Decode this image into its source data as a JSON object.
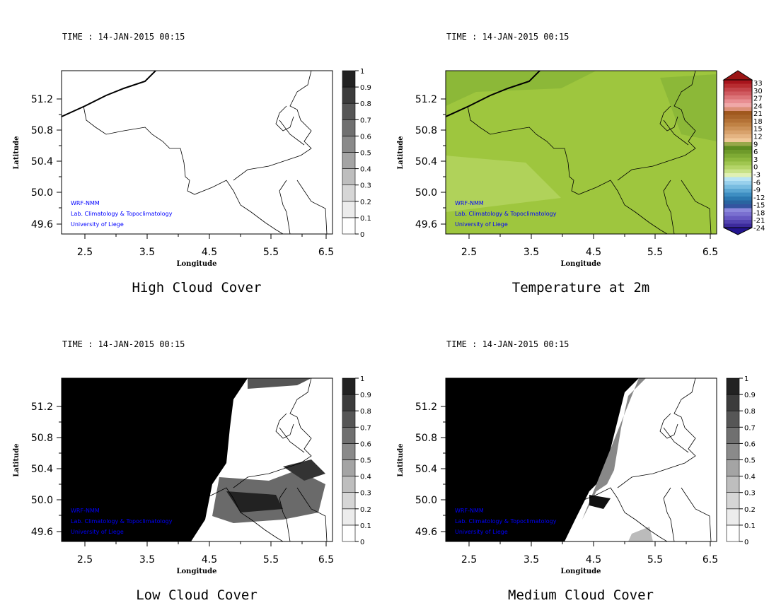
{
  "credits": [
    "WRF-NMM",
    "Lab. Climatology & Topoclimatology",
    "University of Liege"
  ],
  "axes": {
    "xlabel": "Longitude",
    "ylabel": "Latitude",
    "xticks": [
      "2.5",
      "3.5",
      "4.5",
      "5.5",
      "6.5"
    ],
    "yticks": [
      "51.2",
      "50.8",
      "50.4",
      "50.0",
      "49.6"
    ]
  },
  "gray_colorbar": {
    "labels": [
      "0",
      "0.1",
      "0.2",
      "0.3",
      "0.4",
      "0.5",
      "0.6",
      "0.7",
      "0.8",
      "0.9",
      "1"
    ],
    "colors": [
      "#ffffff",
      "#ececec",
      "#d6d6d6",
      "#bebebe",
      "#a4a4a4",
      "#8a8a8a",
      "#707070",
      "#565656",
      "#3c3c3c",
      "#222222"
    ]
  },
  "temp_colorbar": {
    "labels": [
      "33",
      "30",
      "27",
      "24",
      "21",
      "18",
      "15",
      "12",
      "9",
      "6",
      "3",
      "0",
      "-3",
      "-6",
      "-9",
      "-12",
      "-15",
      "-18",
      "-21",
      "-24"
    ],
    "top_color": "#9b1515",
    "bottom_color": "#23148f",
    "colors": [
      "#a8141c",
      "#b82c30",
      "#c4444a",
      "#d05a60",
      "#dc7478",
      "#e88e92",
      "#f0a8a8",
      "#dc9078",
      "#a0581e",
      "#a8642a",
      "#b47236",
      "#c08244",
      "#cc9258",
      "#d8a26c",
      "#e4b482",
      "#f0c898",
      "#98a84a",
      "#5e8c22",
      "#6e9a2a",
      "#7eaa34",
      "#8eb83e",
      "#a0c650",
      "#b4d468",
      "#c8e288",
      "#e0f0b4",
      "#b8e4f4",
      "#98d0ec",
      "#78bce0",
      "#5aa6d2",
      "#3e8ec2",
      "#2c78b0",
      "#2a64a0",
      "#3454a0",
      "#8c88dc",
      "#7a70d0",
      "#6658c2",
      "#5242b0",
      "#3c2a9c"
    ]
  },
  "panels": [
    {
      "time": "TIME : 14-JAN-2015 00:15",
      "title": "High Cloud Cover",
      "field": "gray",
      "fill": "none"
    },
    {
      "time": "TIME : 14-JAN-2015 00:15",
      "title": "Temperature at 2m",
      "field": "temp",
      "fill": "#9ec63e"
    },
    {
      "time": "TIME : 14-JAN-2015 00:15",
      "title": "Low Cloud Cover",
      "field": "gray",
      "fill": "low"
    },
    {
      "time": "TIME : 14-JAN-2015 00:15",
      "title": "Medium Cloud Cover",
      "field": "gray",
      "fill": "medium"
    }
  ]
}
